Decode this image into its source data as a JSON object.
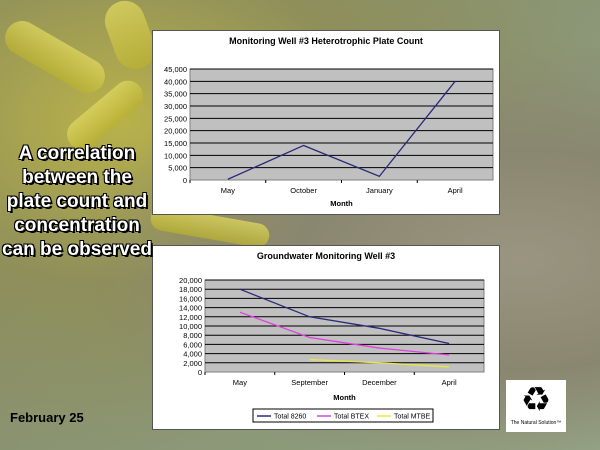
{
  "slide_text": "A correlation between the plate count and concentration can be observed",
  "date": "February 25",
  "logo_text": "The Natural Solution™",
  "chart_data": [
    {
      "type": "line",
      "title": "Monitoring Well #3 Heterotrophic Plate Count",
      "xlabel": "Month",
      "ylabel": "",
      "categories": [
        "May",
        "October",
        "January",
        "April"
      ],
      "ylim": [
        0,
        45000
      ],
      "yticks": [
        "0",
        "5,000",
        "10,000",
        "15,000",
        "20,000",
        "25,000",
        "30,000",
        "35,000",
        "40,000",
        "45,000"
      ],
      "series": [
        {
          "name": "Plate Count",
          "color": "#2a2a7a",
          "values": [
            300,
            14000,
            1500,
            40000
          ]
        }
      ],
      "legend": "none"
    },
    {
      "type": "line",
      "title": "Groundwater Monitoring Well #3",
      "xlabel": "Month",
      "ylabel": "",
      "categories": [
        "May",
        "September",
        "December",
        "April"
      ],
      "ylim": [
        0,
        20000
      ],
      "yticks": [
        "0",
        "2,000",
        "4,000",
        "6,000",
        "8,000",
        "10,000",
        "12,000",
        "14,000",
        "16,000",
        "18,000",
        "20,000"
      ],
      "series": [
        {
          "name": "Total 8260",
          "color": "#2a2a7a",
          "values": [
            18000,
            12000,
            9500,
            6200
          ]
        },
        {
          "name": "Total BTEX",
          "color": "#e040e0",
          "values": [
            13000,
            7500,
            5200,
            3700
          ]
        },
        {
          "name": "Total MTBE",
          "color": "#e8e840",
          "values": [
            null,
            2700,
            2000,
            1100
          ]
        }
      ],
      "legend": "bottom"
    }
  ]
}
